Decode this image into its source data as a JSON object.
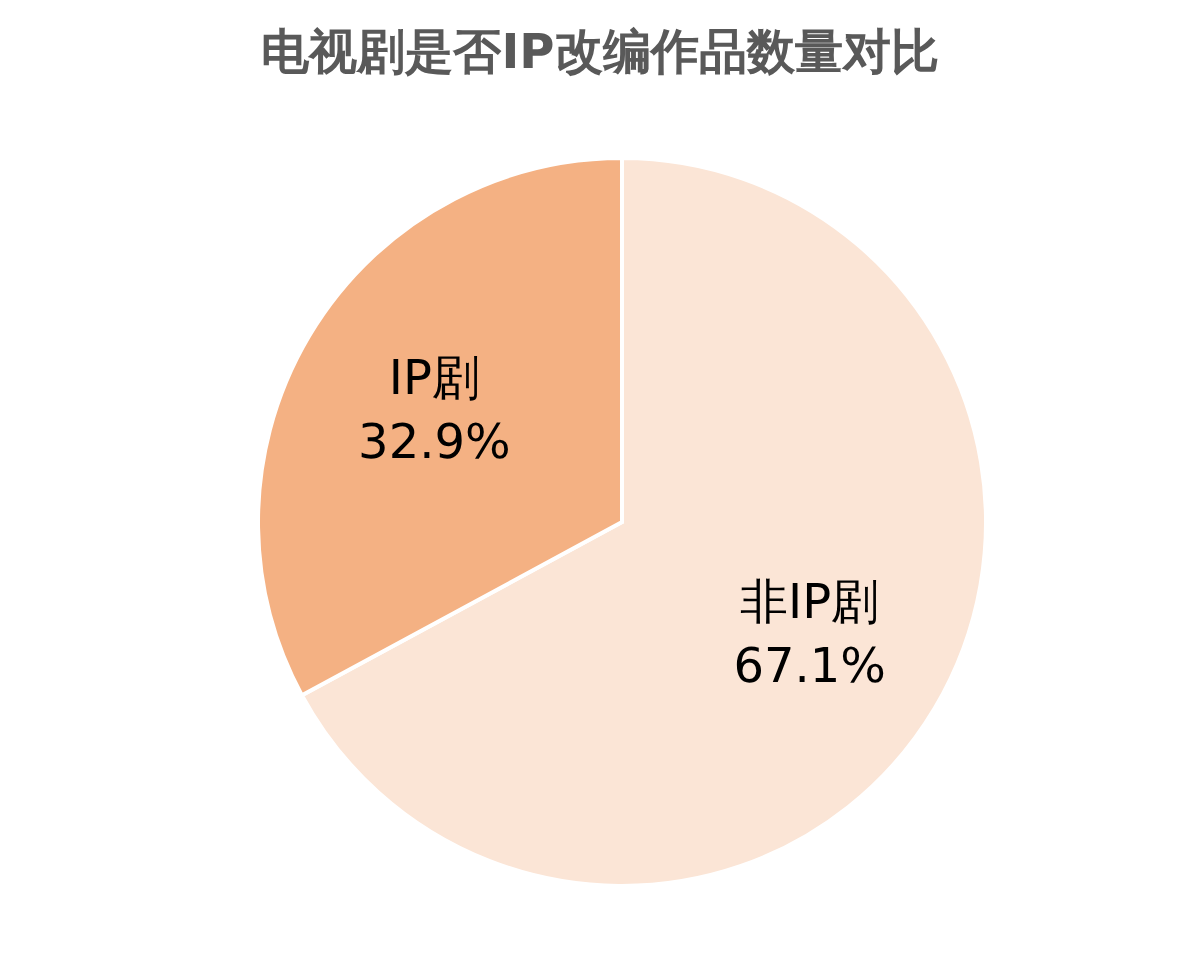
{
  "chart_data": {
    "type": "pie",
    "title": "电视剧是否IP改编作品数量对比",
    "categories": [
      "非IP剧",
      "IP剧"
    ],
    "values": [
      67.1,
      32.9
    ],
    "colors": [
      "#fbe5d6",
      "#f4b183"
    ],
    "value_labels": [
      "67.1%",
      "32.9%"
    ]
  }
}
